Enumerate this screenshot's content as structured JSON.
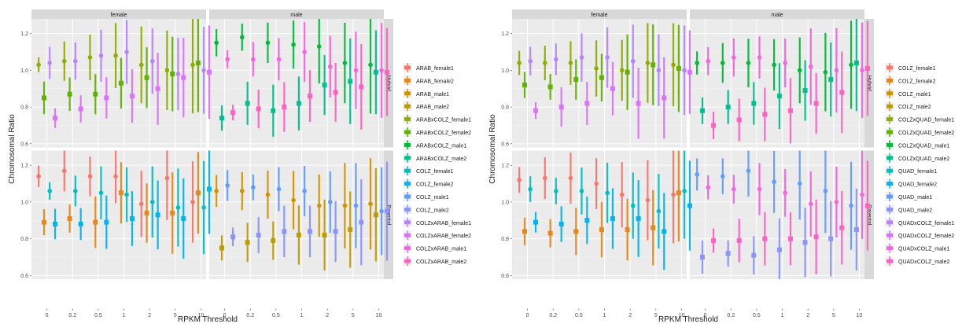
{
  "figure": {
    "x_axis_title": "RPKM Threshold",
    "y_axis_title": "Chromosomal Ratio",
    "facet_columns": [
      "female",
      "male"
    ],
    "facet_rows": [
      "Hybrid",
      "Parental"
    ],
    "colors": [
      "#F8766D",
      "#E7861B",
      "#D39200",
      "#C09B00",
      "#93AA00",
      "#5EB300",
      "#00BA38",
      "#00C08B",
      "#00BFC4",
      "#00B4F0",
      "#619CFF",
      "#8B93FF",
      "#B983FF",
      "#DB72FB",
      "#F564E3",
      "#FF61C3"
    ]
  },
  "chart_data": [
    {
      "type": "scatter",
      "title": "",
      "xlabel": "RPKM Threshold",
      "ylabel": "Chromosomal Ratio",
      "facet_columns": [
        "female",
        "male"
      ],
      "facet_rows": [
        "Hybrid",
        "Parental"
      ],
      "x_ticks": [
        "0",
        "0.2",
        "0.5",
        "1",
        "2",
        "5",
        "10"
      ],
      "y_ticks": [
        0.6,
        0.8,
        1.0,
        1.2
      ],
      "ylim": [
        0.58,
        1.28
      ],
      "legend_position": "right",
      "legend": [
        "ARAB_female1",
        "ARAB_female2",
        "ARAB_male1",
        "ARAB_male2",
        "ARABxCOLZ_female1",
        "ARABxCOLZ_female2",
        "ARABxCOLZ_male1",
        "ARABxCOLZ_male2",
        "COLZ_female1",
        "COLZ_female2",
        "COLZ_male1",
        "COLZ_male2",
        "COLZxARAB_female1",
        "COLZxARAB_female2",
        "COLZxARAB_male1",
        "COLZxARAB_male2"
      ],
      "panels": [
        {
          "col": "female",
          "row": "Hybrid",
          "series": [
            {
              "name": "ARABxCOLZ_female1",
              "values": [
                1.03,
                1.05,
                1.07,
                1.08,
                1.03,
                1.0,
                1.03
              ]
            },
            {
              "name": "ARABxCOLZ_female2",
              "values": [
                0.85,
                0.87,
                0.87,
                0.93,
                0.96,
                0.98,
                1.04
              ]
            },
            {
              "name": "COLZxARAB_female1",
              "values": [
                1.04,
                1.05,
                1.08,
                1.1,
                1.05,
                0.98,
                1.0
              ]
            },
            {
              "name": "COLZxARAB_female2",
              "values": [
                0.74,
                0.79,
                0.85,
                0.86,
                0.9,
                0.96,
                0.99
              ]
            }
          ]
        },
        {
          "col": "male",
          "row": "Hybrid",
          "series": [
            {
              "name": "ARABxCOLZ_male1",
              "values": [
                1.15,
                1.18,
                1.15,
                1.14,
                1.13,
                1.04,
                1.03
              ]
            },
            {
              "name": "ARABxCOLZ_male2",
              "values": [
                0.74,
                0.82,
                0.78,
                0.82,
                0.92,
                0.94,
                0.99
              ]
            },
            {
              "name": "COLZxARAB_male1",
              "values": [
                1.06,
                1.06,
                1.06,
                1.1,
                1.02,
                1.0,
                1.0
              ]
            },
            {
              "name": "COLZxARAB_male2",
              "values": [
                0.77,
                0.79,
                0.8,
                0.86,
                0.88,
                0.91,
                0.99
              ]
            }
          ]
        },
        {
          "col": "female",
          "row": "Parental",
          "series": [
            {
              "name": "ARAB_female1",
              "values": [
                1.14,
                1.17,
                1.14,
                1.14,
                0.99,
                1.13,
                1.0
              ]
            },
            {
              "name": "ARAB_female2",
              "values": [
                0.89,
                0.91,
                0.89,
                1.05,
                0.94,
                0.94,
                1.05
              ]
            },
            {
              "name": "COLZ_female1",
              "values": [
                1.06,
                1.06,
                1.05,
                1.04,
                1.0,
                0.97,
                0.97
              ]
            },
            {
              "name": "COLZ_female2",
              "values": [
                0.88,
                0.88,
                0.89,
                0.91,
                0.93,
                0.91,
                1.07
              ]
            }
          ]
        },
        {
          "col": "male",
          "row": "Parental",
          "series": [
            {
              "name": "ARAB_male1",
              "values": [
                1.06,
                1.06,
                1.04,
                1.01,
                0.98,
                0.98,
                0.99
              ]
            },
            {
              "name": "ARAB_male2",
              "values": [
                0.75,
                0.78,
                0.79,
                0.82,
                0.82,
                0.85,
                0.93
              ]
            },
            {
              "name": "COLZ_male1",
              "values": [
                1.09,
                1.08,
                1.07,
                1.06,
                1.0,
                0.98,
                0.95
              ]
            },
            {
              "name": "COLZ_male2",
              "values": [
                0.81,
                0.82,
                0.84,
                0.84,
                0.84,
                0.89,
                0.95
              ]
            }
          ]
        }
      ]
    },
    {
      "type": "scatter",
      "title": "",
      "xlabel": "RPKM Threshold",
      "ylabel": "Chromosomal Ratio",
      "facet_columns": [
        "female",
        "male"
      ],
      "facet_rows": [
        "Hybrid",
        "Parental"
      ],
      "x_ticks": [
        "0",
        "0.2",
        "0.5",
        "1",
        "2",
        "5",
        "10"
      ],
      "y_ticks": [
        0.6,
        0.8,
        1.0,
        1.2
      ],
      "ylim": [
        0.58,
        1.28
      ],
      "legend_position": "right",
      "legend": [
        "COLZ_female1",
        "COLZ_female2",
        "COLZ_male1",
        "COLZ_male2",
        "COLZxQUAD_female1",
        "COLZxQUAD_female2",
        "COLZxQUAD_male1",
        "COLZxQUAD_male2",
        "QUAD_female1",
        "QUAD_female2",
        "QUAD_male1",
        "QUAD_male2",
        "QUADxCOLZ_female1",
        "QUADxCOLZ_female2",
        "QUADxCOLZ_male1",
        "QUADxCOLZ_male2"
      ],
      "panels": [
        {
          "col": "female",
          "row": "Hybrid",
          "series": [
            {
              "name": "COLZxQUAD_female1",
              "values": [
                1.04,
                1.04,
                1.04,
                1.01,
                1.0,
                1.04,
                1.03
              ]
            },
            {
              "name": "COLZxQUAD_female2",
              "values": [
                0.92,
                0.91,
                0.95,
                0.96,
                0.99,
                1.03,
                1.01
              ]
            },
            {
              "name": "QUADxCOLZ_female1",
              "values": [
                1.05,
                1.06,
                1.07,
                1.07,
                1.05,
                1.0,
                1.0
              ]
            },
            {
              "name": "QUADxCOLZ_female2",
              "values": [
                0.78,
                0.8,
                0.82,
                0.9,
                0.82,
                0.85,
                0.99
              ]
            }
          ]
        },
        {
          "col": "male",
          "row": "Hybrid",
          "series": [
            {
              "name": "COLZxQUAD_male1",
              "values": [
                1.04,
                1.04,
                1.04,
                1.03,
                1.0,
                0.99,
                1.03
              ]
            },
            {
              "name": "COLZxQUAD_male2",
              "values": [
                0.78,
                0.8,
                0.82,
                0.86,
                0.89,
                0.95,
                1.04
              ]
            },
            {
              "name": "QUADxCOLZ_male1",
              "values": [
                1.05,
                1.07,
                1.07,
                1.04,
                1.02,
                1.0,
                1.0
              ]
            },
            {
              "name": "QUADxCOLZ_male2",
              "values": [
                0.7,
                0.73,
                0.76,
                0.78,
                0.82,
                0.88,
                1.01
              ]
            }
          ]
        },
        {
          "col": "female",
          "row": "Parental",
          "series": [
            {
              "name": "COLZ_female1",
              "values": [
                1.12,
                1.13,
                1.13,
                1.1,
                1.04,
                1.01,
                1.04
              ]
            },
            {
              "name": "COLZ_female2",
              "values": [
                0.84,
                0.83,
                0.84,
                0.85,
                0.85,
                0.86,
                1.05
              ]
            },
            {
              "name": "QUAD_female1",
              "values": [
                1.07,
                1.06,
                1.06,
                1.05,
                0.98,
                0.95,
                1.06
              ]
            },
            {
              "name": "QUAD_female2",
              "values": [
                0.89,
                0.88,
                0.9,
                0.91,
                0.91,
                0.84,
                0.98
              ]
            }
          ]
        },
        {
          "col": "male",
          "row": "Parental",
          "series": [
            {
              "name": "QUAD_male1",
              "values": [
                1.15,
                1.14,
                1.17,
                1.11,
                1.1,
                1.06,
                0.98
              ]
            },
            {
              "name": "QUAD_male2",
              "values": [
                0.7,
                0.72,
                0.71,
                0.74,
                0.78,
                0.8,
                0.85
              ]
            },
            {
              "name": "QUADxCOLZ_male1",
              "values": [
                1.08,
                1.07,
                1.07,
                1.05,
                0.99,
                1.0,
                1.04
              ]
            },
            {
              "name": "QUADxCOLZ_male2",
              "values": [
                0.79,
                0.79,
                0.8,
                0.8,
                0.81,
                0.86,
                0.98
              ]
            }
          ]
        }
      ]
    }
  ]
}
